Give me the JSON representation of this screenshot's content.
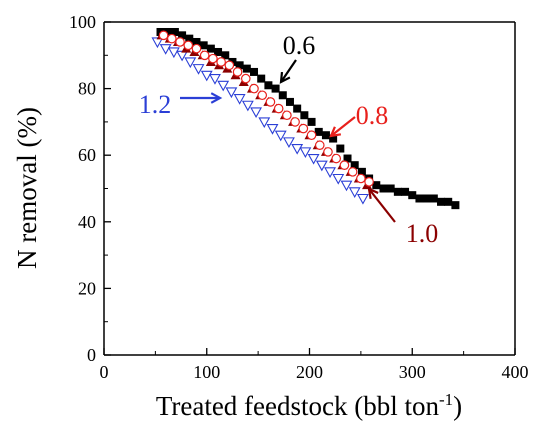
{
  "chart_data": {
    "type": "scatter",
    "xlabel": "Treated feedstock (bbl ton",
    "xlabel_sup": "-1",
    "xlabel_end": ")",
    "ylabel": "N removal (%)",
    "xlim": [
      0,
      400
    ],
    "ylim": [
      0,
      100
    ],
    "xticks": [
      0,
      100,
      200,
      300,
      400
    ],
    "yticks": [
      0,
      20,
      40,
      60,
      80,
      100
    ],
    "grid": false,
    "series": [
      {
        "name": "0.6",
        "color": "#000000",
        "marker": "square",
        "x": [
          55,
          62,
          69,
          76,
          83,
          90,
          97,
          104,
          111,
          118,
          125,
          132,
          139,
          146,
          153,
          160,
          167,
          174,
          181,
          188,
          195,
          202,
          209,
          216,
          223,
          230,
          237,
          244,
          251,
          258,
          265,
          272,
          279,
          286,
          293,
          300,
          307,
          314,
          321,
          328,
          335,
          342
        ],
        "y": [
          97,
          97,
          97,
          96,
          95,
          94,
          93,
          92,
          91,
          90,
          88,
          87,
          86,
          85,
          83,
          81,
          80,
          78,
          76,
          74,
          72,
          70,
          67,
          66,
          65,
          62,
          59,
          57,
          55,
          53,
          51,
          50,
          50,
          49,
          49,
          48,
          47,
          47,
          47,
          46,
          46,
          45
        ]
      },
      {
        "name": "0.8",
        "color": "#e8201c",
        "marker": "circle-open",
        "x": [
          58,
          66,
          74,
          82,
          90,
          98,
          106,
          114,
          122,
          130,
          138,
          146,
          154,
          162,
          170,
          178,
          186,
          194,
          202,
          210,
          218,
          226,
          234,
          242,
          250,
          258
        ],
        "y": [
          96,
          95,
          94,
          93,
          92,
          90,
          89,
          88,
          87,
          85,
          83,
          80,
          78,
          76,
          74,
          72,
          70,
          68,
          66,
          63,
          61,
          59,
          57,
          55,
          53,
          52
        ]
      },
      {
        "name": "1.0",
        "color": "#8b0000",
        "marker": "triangle-up",
        "x": [
          56,
          64,
          72,
          80,
          88,
          96,
          104,
          112,
          120,
          128,
          136,
          144,
          152,
          160,
          168,
          176,
          184,
          192,
          200,
          208,
          216,
          224,
          232,
          240,
          248,
          256
        ],
        "y": [
          96,
          95,
          94,
          92,
          91,
          90,
          88,
          87,
          86,
          84,
          82,
          80,
          78,
          76,
          74,
          72,
          70,
          68,
          66,
          63,
          61,
          59,
          57,
          55,
          53,
          51
        ]
      },
      {
        "name": "1.2",
        "color": "#2b3fd6",
        "marker": "triangle-down-open",
        "x": [
          52,
          60,
          68,
          76,
          84,
          92,
          100,
          108,
          116,
          124,
          132,
          140,
          148,
          156,
          164,
          172,
          180,
          188,
          196,
          204,
          212,
          220,
          228,
          236,
          244,
          252
        ],
        "y": [
          94,
          92,
          91,
          90,
          88,
          86,
          84,
          83,
          81,
          79,
          77,
          75,
          73,
          70,
          68,
          66,
          64,
          62,
          61,
          59,
          57,
          55,
          53,
          51,
          49,
          47
        ]
      }
    ],
    "annotations": [
      {
        "text": "0.6",
        "color": "#000000"
      },
      {
        "text": "0.8",
        "color": "#e8201c"
      },
      {
        "text": "1.0",
        "color": "#8b0000"
      },
      {
        "text": "1.2",
        "color": "#2b3fd6"
      }
    ]
  }
}
